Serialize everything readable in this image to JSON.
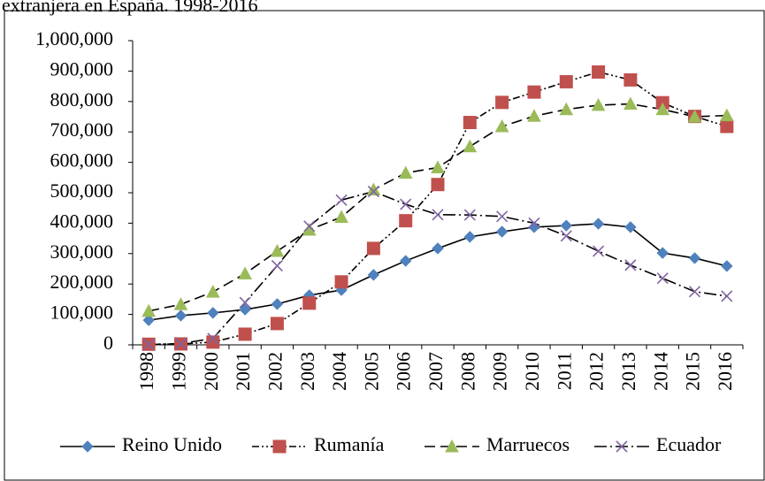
{
  "chart_data": {
    "type": "line",
    "title": "extranjera en España. 1998-2016",
    "categories": [
      "1998",
      "1999",
      "2000",
      "2001",
      "2002",
      "2003",
      "2004",
      "2005",
      "2006",
      "2007",
      "2008",
      "2009",
      "2010",
      "2011",
      "2012",
      "2013",
      "2014",
      "2015",
      "2016"
    ],
    "series": [
      {
        "name": "Reino Unido",
        "color": "#4f81bd",
        "values": [
          81000,
          96000,
          105000,
          116000,
          134000,
          163000,
          180000,
          230000,
          276000,
          317000,
          355000,
          372000,
          387000,
          392000,
          398000,
          387000,
          302000,
          285000,
          259000
        ]
      },
      {
        "name": "Rumanía",
        "color": "#c0504d",
        "values": [
          2000,
          3000,
          9000,
          35000,
          70000,
          137000,
          207000,
          317000,
          408000,
          527000,
          731000,
          797000,
          831000,
          865000,
          897000,
          871000,
          796000,
          751000,
          718000
        ]
      },
      {
        "name": "Marruecos",
        "color": "#9bbb59",
        "values": [
          111000,
          133000,
          174000,
          234000,
          308000,
          378000,
          420000,
          510000,
          565000,
          583000,
          652000,
          718000,
          752000,
          774000,
          788000,
          792000,
          774000,
          750000,
          754000
        ]
      },
      {
        "name": "Ecuador",
        "color": "#8064a2",
        "values": [
          1000,
          4000,
          21000,
          139000,
          260000,
          390000,
          476000,
          504000,
          462000,
          428000,
          427000,
          422000,
          400000,
          358000,
          308000,
          262000,
          219000,
          175000,
          160000
        ]
      }
    ],
    "ylim": [
      0,
      1000000
    ],
    "yticks": [
      0,
      {
        "value": 100000,
        "label": "100,000"
      },
      {
        "value": 200000,
        "label": "200,000"
      },
      {
        "value": 300000,
        "label": "300,000"
      },
      {
        "value": 400000,
        "label": "400,000"
      },
      {
        "value": 500000,
        "label": "500,000"
      },
      {
        "value": 600000,
        "label": "600,000"
      },
      {
        "value": 700000,
        "label": "700,000"
      },
      {
        "value": 800000,
        "label": "800,000"
      },
      {
        "value": 900000,
        "label": "900,000"
      },
      {
        "value": 1000000,
        "label": "1,000,000"
      }
    ],
    "legend": "bottom"
  }
}
